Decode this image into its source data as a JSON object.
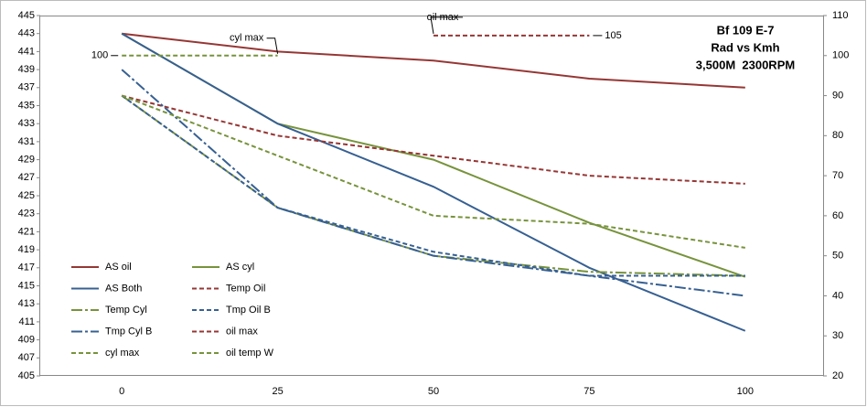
{
  "chart_data": {
    "type": "line",
    "title": [
      "Bf 109 E-7",
      "Rad vs Kmh",
      "3,500M  2300RPM"
    ],
    "categories": [
      "0",
      "25",
      "50",
      "75",
      "100"
    ],
    "ylim": [
      405,
      445
    ],
    "yticks": [
      405,
      407,
      409,
      411,
      413,
      415,
      417,
      419,
      421,
      423,
      425,
      427,
      429,
      431,
      433,
      435,
      437,
      439,
      441,
      443,
      445
    ],
    "y2lim": [
      20,
      110
    ],
    "y2ticks": [
      20,
      30,
      40,
      50,
      60,
      70,
      80,
      90,
      100,
      110
    ],
    "series": [
      {
        "name": "AS oil",
        "color": "#953735",
        "dash": "solid",
        "values": [
          443,
          441,
          440,
          438,
          437
        ]
      },
      {
        "name": "AS cyl",
        "color": "#77933c",
        "dash": "solid",
        "values": [
          443,
          433,
          429,
          422,
          416
        ]
      },
      {
        "name": "AS Both",
        "color": "#376092",
        "dash": "solid",
        "values": [
          443,
          433,
          426,
          417,
          410
        ]
      },
      {
        "name": "Temp Oil",
        "color": "#953735",
        "dash": "dash",
        "axis": "y2",
        "values": [
          90,
          80,
          75,
          70,
          68
        ]
      },
      {
        "name": "Temp Cyl",
        "color": "#77933c",
        "dash": "dashdot",
        "axis": "y2",
        "values": [
          90,
          62,
          50,
          46,
          45
        ]
      },
      {
        "name": "Tmp Oil B",
        "color": "#376092",
        "dash": "dash",
        "axis": "y2",
        "values": [
          90,
          62,
          51,
          45,
          45
        ]
      },
      {
        "name": "Tmp Cyl B",
        "color": "#376092",
        "dash": "dashdot",
        "axis": "y2",
        "values": [
          96.5,
          62,
          50,
          45,
          40
        ]
      },
      {
        "name": "oil max",
        "color": "#953735",
        "dash": "dash",
        "axis": "y2",
        "values": [
          null,
          null,
          105,
          105,
          null
        ],
        "value_labels": [
          null,
          null,
          null,
          "105",
          null
        ]
      },
      {
        "name": "cyl max",
        "color": "#77933c",
        "dash": "dash",
        "axis": "y2",
        "values": [
          100,
          100,
          null,
          null,
          null
        ],
        "value_labels": [
          "100",
          null,
          null,
          null,
          null
        ]
      },
      {
        "name": "oil temp W",
        "color": "#77933c",
        "dash": "dash",
        "axis": "y2",
        "values": [
          90,
          75,
          60,
          58,
          52
        ]
      }
    ]
  }
}
